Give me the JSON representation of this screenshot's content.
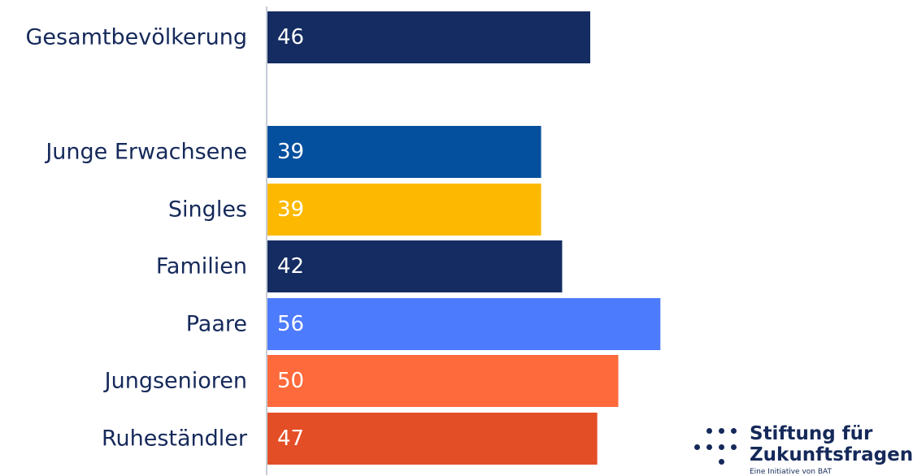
{
  "chart_data": {
    "type": "bar",
    "orientation": "horizontal",
    "categories": [
      "Gesamtbevölkerung",
      "Junge Erwachsene",
      "Singles",
      "Familien",
      "Paare",
      "Jungsenioren",
      "Ruheständler"
    ],
    "values": [
      46,
      39,
      39,
      42,
      56,
      50,
      47
    ],
    "colors": [
      "#142c62",
      "#05509e",
      "#fdb901",
      "#142c62",
      "#4d7bfd",
      "#fe6a3b",
      "#e34e26"
    ],
    "title": "",
    "xlabel": "",
    "ylabel": "",
    "xlim": [
      0,
      92
    ],
    "grid": false,
    "legend": "none"
  },
  "logo": {
    "line1": "Stiftung für",
    "line2": "Zukunftsfragen",
    "subline": "Eine Initiative von BAT",
    "color": "#15295a"
  }
}
